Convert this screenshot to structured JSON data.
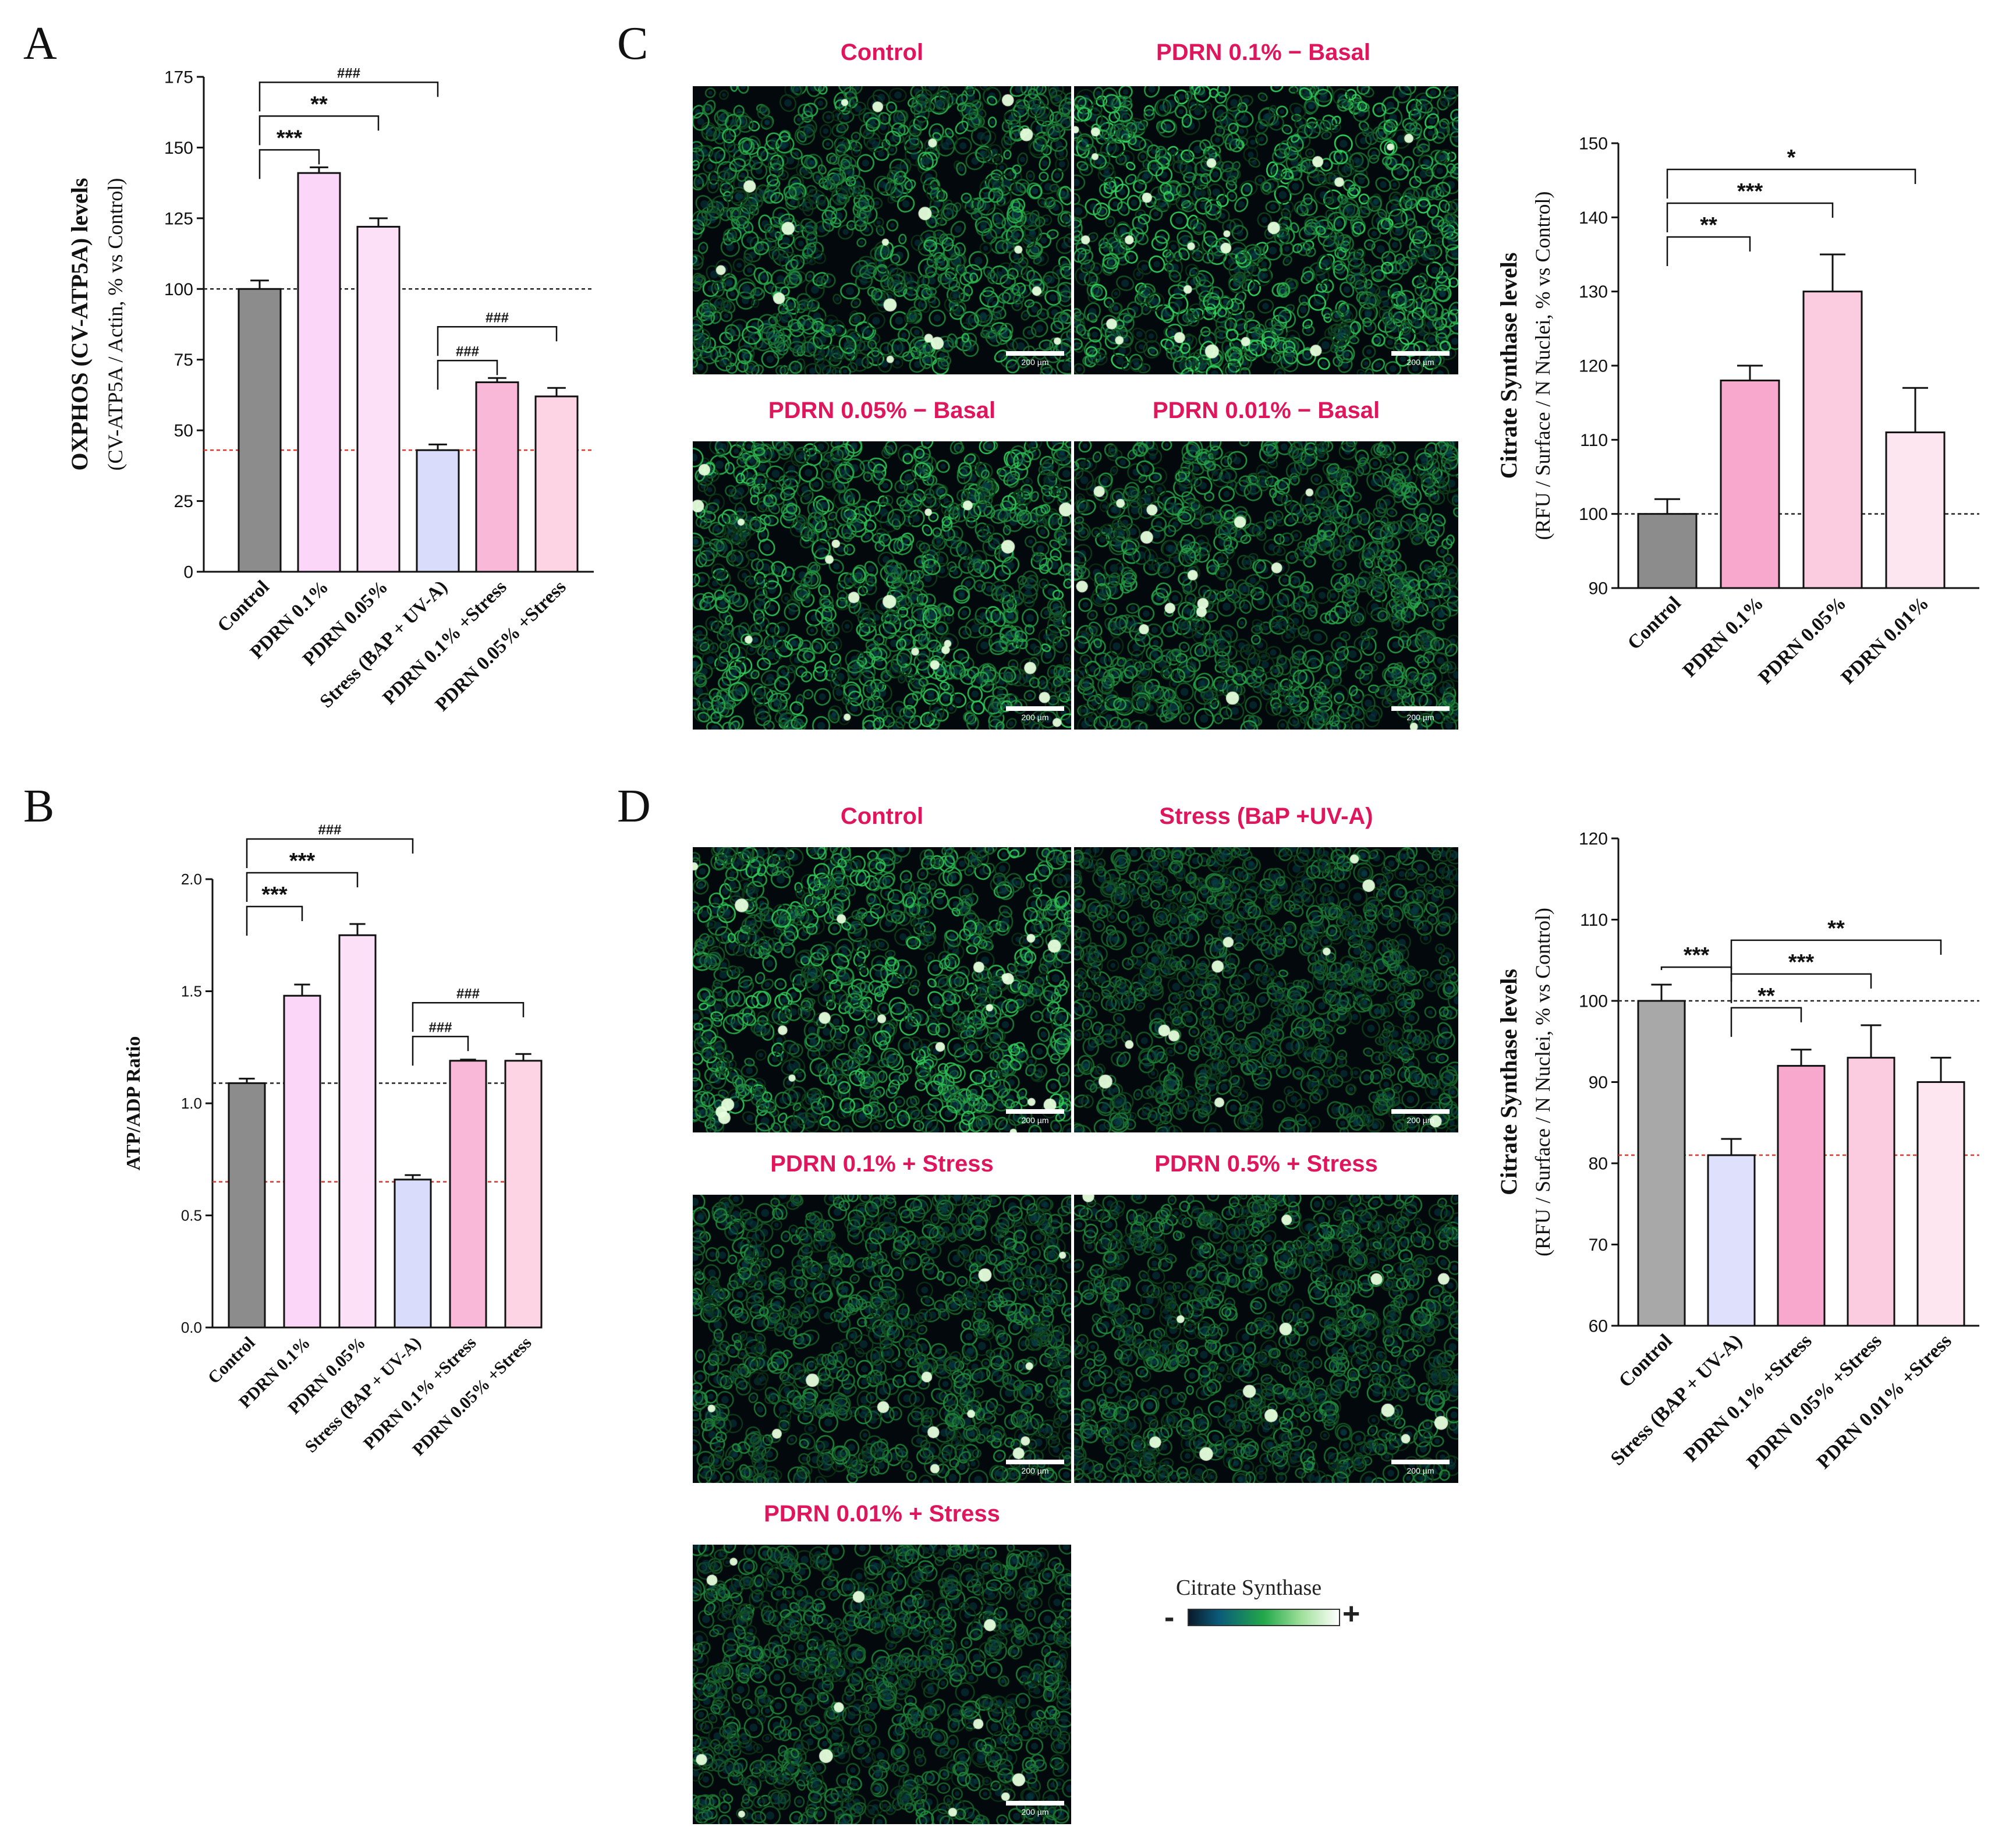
{
  "panels": {
    "A": "A",
    "B": "B",
    "C": "C",
    "D": "D"
  },
  "chart_data": [
    {
      "id": "A",
      "type": "bar",
      "categories": [
        "Control",
        "PDRN 0.1%",
        "PDRN 0.05%",
        "Stress (BAP + UV-A)",
        "PDRN 0.1% +Stress",
        "PDRN 0.05% +Stress"
      ],
      "values": [
        100,
        141,
        122,
        43,
        67,
        62
      ],
      "errors": [
        3,
        2,
        3,
        2,
        1.5,
        3
      ],
      "colors": [
        "#8c8c8c",
        "#fcd6f8",
        "#fbe0f8",
        "#d9dcfa",
        "#f9b8d8",
        "#fcd4e4"
      ],
      "ylim": [
        0,
        175
      ],
      "yticks": [
        0,
        25,
        50,
        75,
        100,
        125,
        150,
        175
      ],
      "ylabel_bold": "OXPHOS (CV-ATP5A) levels",
      "ylabel": "(CV-ATP5A / Actin, % vs Control)",
      "reference_lines": [
        {
          "value": 100,
          "color": "#222222"
        },
        {
          "value": 43,
          "color": "#e0342a"
        }
      ],
      "annotations": [
        {
          "from": 0,
          "to": 1,
          "label": "***"
        },
        {
          "from": 0,
          "to": 2,
          "label": "**"
        },
        {
          "from": 0,
          "to": 3,
          "label": "###"
        },
        {
          "from": 3,
          "to": 4,
          "label": "###"
        },
        {
          "from": 3,
          "to": 5,
          "label": "###"
        }
      ]
    },
    {
      "id": "B",
      "type": "bar",
      "categories": [
        "Control",
        "PDRN 0.1%",
        "PDRN 0.05%",
        "Stress (BAP + UV-A)",
        "PDRN 0.1% +Stress",
        "PDRN 0.05% +Stress"
      ],
      "values": [
        1.09,
        1.48,
        1.75,
        0.66,
        1.19,
        1.19
      ],
      "errors": [
        0.02,
        0.05,
        0.05,
        0.02,
        0.005,
        0.03
      ],
      "colors": [
        "#8c8c8c",
        "#fcd6f8",
        "#fbe0f8",
        "#d9dcfa",
        "#f9b8d8",
        "#fcd4e4"
      ],
      "ylim": [
        0,
        2.0
      ],
      "yticks": [
        0.0,
        0.5,
        1.0,
        1.5,
        2.0
      ],
      "ylabel": "ATP/ADP Ratio",
      "reference_lines": [
        {
          "value": 1.09,
          "color": "#222222"
        },
        {
          "value": 0.65,
          "color": "#e0342a"
        }
      ],
      "annotations": [
        {
          "from": 0,
          "to": 1,
          "label": "***"
        },
        {
          "from": 0,
          "to": 2,
          "label": "***"
        },
        {
          "from": 0,
          "to": 3,
          "label": "###"
        },
        {
          "from": 3,
          "to": 4,
          "label": "###"
        },
        {
          "from": 3,
          "to": 5,
          "label": "###"
        }
      ]
    },
    {
      "id": "C",
      "type": "bar",
      "categories": [
        "Control",
        "PDRN 0.1%",
        "PDRN 0.05%",
        "PDRN 0.01%"
      ],
      "values": [
        100,
        118,
        130,
        111
      ],
      "errors": [
        2,
        2,
        5,
        6
      ],
      "colors": [
        "#8c8c8c",
        "#f7a8cc",
        "#fbcbe0",
        "#fde6ef"
      ],
      "ylim": [
        90,
        150
      ],
      "yticks": [
        90,
        100,
        110,
        120,
        130,
        140,
        150
      ],
      "ylabel_bold": "Citrate Synthase levels",
      "ylabel": "(RFU / Surface / N Nuclei, % vs Control)",
      "reference_lines": [
        {
          "value": 100,
          "color": "#222222"
        }
      ],
      "annotations": [
        {
          "from": 0,
          "to": 1,
          "label": "**"
        },
        {
          "from": 0,
          "to": 2,
          "label": "***"
        },
        {
          "from": 0,
          "to": 3,
          "label": "*"
        }
      ]
    },
    {
      "id": "D",
      "type": "bar",
      "categories": [
        "Control",
        "Stress (BAP + UV-A)",
        "PDRN 0.1% +Stress",
        "PDRN 0.05% +Stress",
        "PDRN 0.01% +Stress"
      ],
      "values": [
        100,
        81,
        92,
        93,
        90
      ],
      "errors": [
        2,
        2,
        2,
        4,
        3
      ],
      "colors": [
        "#a8a8a8",
        "#dfe0fb",
        "#f7a8cc",
        "#fbcbe0",
        "#fde6ef"
      ],
      "ylim": [
        60,
        120
      ],
      "yticks": [
        60,
        70,
        80,
        90,
        100,
        110,
        120
      ],
      "ylabel_bold": "Citrate Synthase levels",
      "ylabel": "(RFU / Surface / N Nuclei, % vs Control)",
      "reference_lines": [
        {
          "value": 100,
          "color": "#222222"
        },
        {
          "value": 81,
          "color": "#e0342a"
        }
      ],
      "annotations": [
        {
          "from": 0,
          "to": 1,
          "label": "***"
        },
        {
          "from": 1,
          "to": 2,
          "label": "**"
        },
        {
          "from": 1,
          "to": 3,
          "label": "***"
        },
        {
          "from": 1,
          "to": 4,
          "label": "**"
        }
      ]
    }
  ],
  "micrographs": {
    "C": [
      {
        "title": "Control",
        "scale": "200 µm",
        "intensity": 1.0
      },
      {
        "title": "PDRN 0.1% − Basal",
        "scale": "200 µm",
        "intensity": 1.2
      },
      {
        "title": "PDRN 0.05% − Basal",
        "scale": "200 µm",
        "intensity": 1.1
      },
      {
        "title": "PDRN 0.01% − Basal",
        "scale": "200 µm",
        "intensity": 0.85
      }
    ],
    "D": [
      {
        "title": "Control",
        "scale": "200 µm",
        "intensity": 1.1
      },
      {
        "title": "Stress (BaP +UV-A)",
        "scale": "200 µm",
        "intensity": 0.6
      },
      {
        "title": "PDRN 0.1% + Stress",
        "scale": "200 µm",
        "intensity": 0.7
      },
      {
        "title": "PDRN 0.5% + Stress",
        "scale": "200 µm",
        "intensity": 0.7
      },
      {
        "title": "PDRN 0.01% + Stress",
        "scale": "200 µm",
        "intensity": 0.65
      }
    ]
  },
  "legend": {
    "title": "Citrate Synthase",
    "minus": "-",
    "plus": "+"
  }
}
